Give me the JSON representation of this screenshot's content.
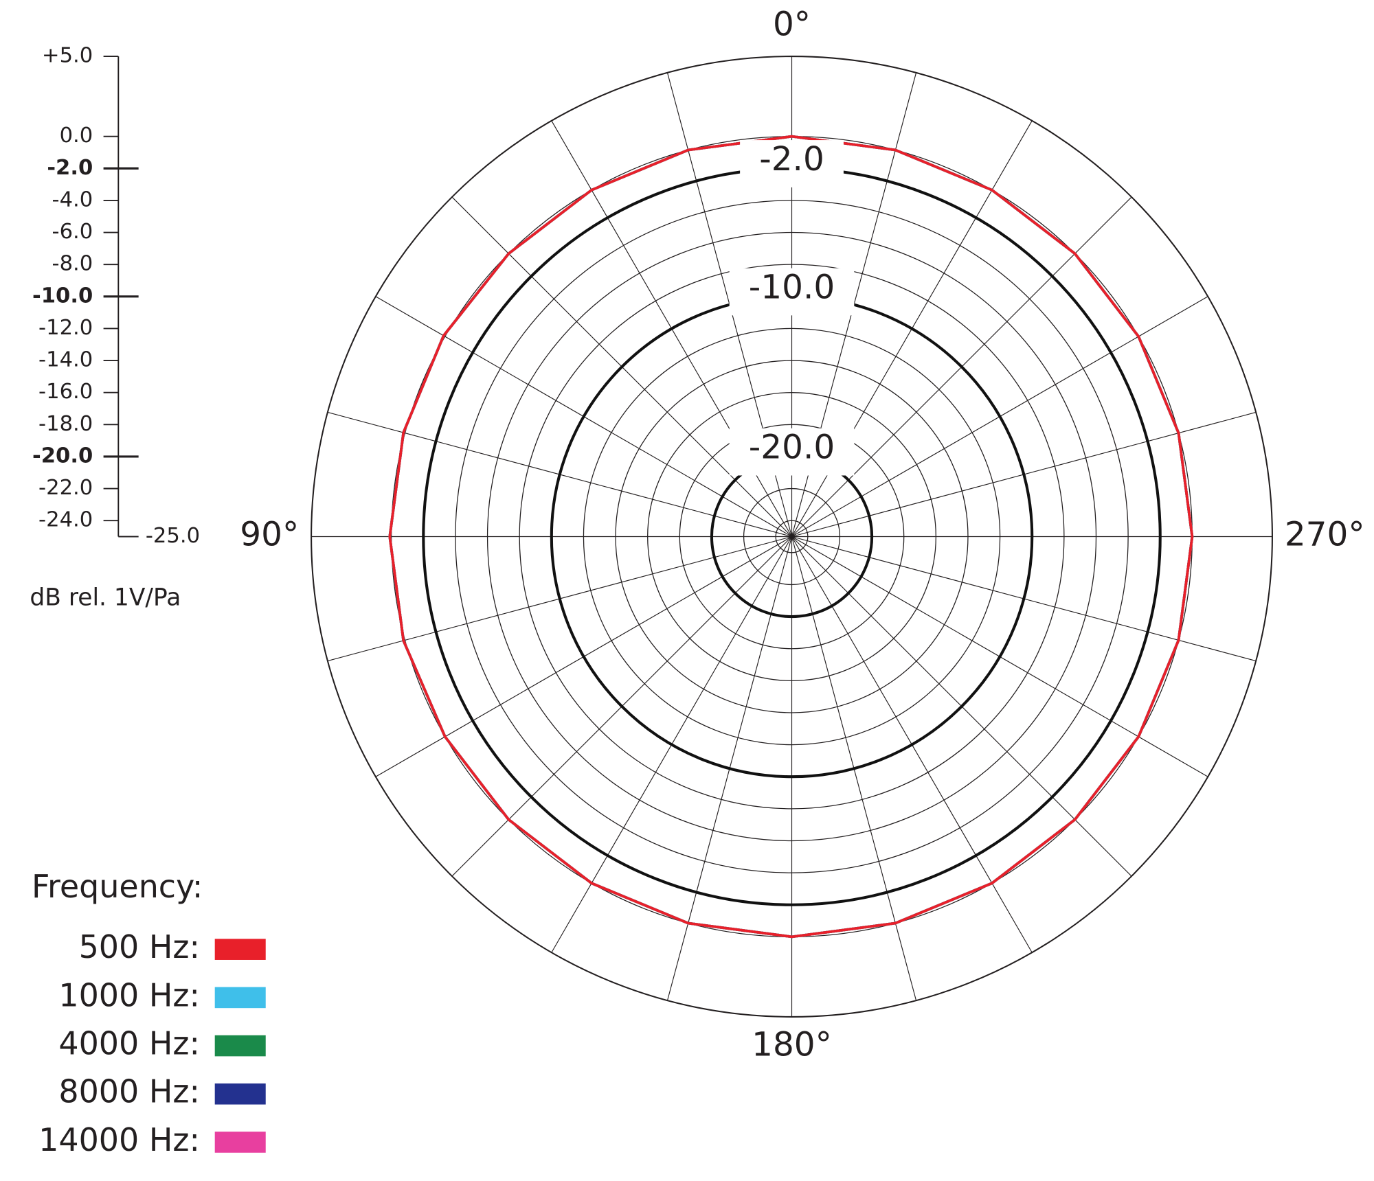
{
  "chart_data": {
    "type": "polar",
    "axis_label": "dB rel. 1V/Pa",
    "legend_title": "Frequency:",
    "rlim": [
      -25,
      5
    ],
    "rticks": [
      {
        "value": 5,
        "label": "+5.0"
      },
      {
        "value": 0,
        "label": "0.0"
      },
      {
        "value": -2,
        "label": "-2.0"
      },
      {
        "value": -4,
        "label": "-4.0"
      },
      {
        "value": -6,
        "label": "-6.0"
      },
      {
        "value": -8,
        "label": "-8.0"
      },
      {
        "value": -10,
        "label": "-10.0"
      },
      {
        "value": -12,
        "label": "-12.0"
      },
      {
        "value": -14,
        "label": "-14.0"
      },
      {
        "value": -16,
        "label": "-16.0"
      },
      {
        "value": -18,
        "label": "-18.0"
      },
      {
        "value": -20,
        "label": "-20.0"
      },
      {
        "value": -22,
        "label": "-22.0"
      },
      {
        "value": -24,
        "label": "-24.0"
      },
      {
        "value": -25,
        "label": "-25.0"
      }
    ],
    "reference_circles": [
      {
        "value": -2,
        "label": "-2.0"
      },
      {
        "value": -10,
        "label": "-10.0"
      },
      {
        "value": -20,
        "label": "-20.0"
      }
    ],
    "thetaticks": [
      {
        "value": 0,
        "label": "0°"
      },
      {
        "value": 90,
        "label": "90°"
      },
      {
        "value": 180,
        "label": "180°"
      },
      {
        "value": 270,
        "label": "270°"
      }
    ],
    "theta": [
      0,
      15,
      30,
      45,
      60,
      75,
      90,
      105,
      120,
      135,
      150,
      165,
      180,
      195,
      210,
      225,
      240,
      255,
      270,
      285,
      300,
      315,
      330,
      345
    ],
    "series": [
      {
        "name": "500 Hz:",
        "color": "#e8202a",
        "values": [
          0,
          0,
          0,
          0,
          0.1,
          0.1,
          0.1,
          0.1,
          0,
          0,
          0,
          0,
          0,
          0,
          0,
          0,
          0,
          0,
          0,
          0,
          0,
          0,
          0,
          0
        ]
      },
      {
        "name": "1000 Hz:",
        "color": "#3fbfea",
        "values": [
          0,
          0,
          0,
          0,
          0.1,
          0.1,
          0.1,
          0.1,
          0,
          0,
          0,
          0,
          0,
          0,
          0,
          0,
          0,
          0,
          0,
          0,
          0,
          0,
          0,
          0
        ]
      },
      {
        "name": "4000 Hz:",
        "color": "#1a8a4a",
        "values": [
          0,
          0,
          0,
          0,
          0.1,
          0.1,
          0.1,
          0.1,
          0,
          0,
          0,
          0,
          0,
          0,
          0,
          0,
          0,
          0,
          0,
          0,
          0,
          0,
          0,
          0
        ]
      },
      {
        "name": "8000 Hz:",
        "color": "#23318f",
        "values": [
          0,
          0,
          0,
          0,
          0.1,
          0.1,
          0.1,
          0.1,
          0,
          0,
          0,
          0,
          0,
          0,
          0,
          0,
          0,
          0,
          0,
          0,
          0,
          0,
          0,
          0
        ]
      },
      {
        "name": "14000 Hz:",
        "color": "#e83f9f",
        "values": [
          0,
          0,
          0,
          0,
          0.1,
          0.1,
          0.1,
          0.1,
          0,
          0,
          0,
          0,
          0,
          0,
          0,
          0,
          0,
          0,
          0,
          0,
          0,
          0,
          0,
          0
        ]
      }
    ]
  }
}
